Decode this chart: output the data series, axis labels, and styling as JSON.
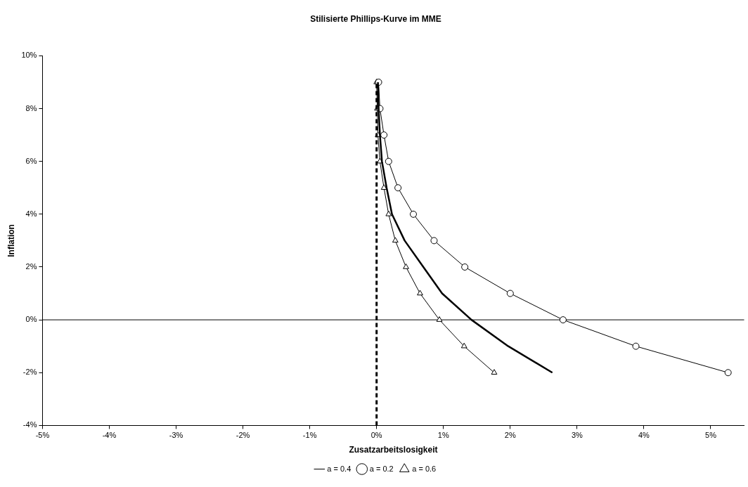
{
  "chart_data": {
    "type": "line",
    "title": "Stilisierte Phillips-Kurve im MME",
    "xlabel": "Zusatzarbeitslosigkeit",
    "ylabel": "Inflation",
    "xlim": [
      -5,
      5.5
    ],
    "xticks": [
      {
        "value": -5,
        "label": "-5%"
      },
      {
        "value": -4,
        "label": "-4%"
      },
      {
        "value": -3,
        "label": "-3%"
      },
      {
        "value": -2,
        "label": "-2%"
      },
      {
        "value": -1,
        "label": "-1%"
      },
      {
        "value": 0,
        "label": "0%"
      },
      {
        "value": 1,
        "label": "1%"
      },
      {
        "value": 2,
        "label": "2%"
      },
      {
        "value": 3,
        "label": "3%"
      },
      {
        "value": 4,
        "label": "4%"
      },
      {
        "value": 5,
        "label": "5%"
      }
    ],
    "ylim": [
      -4,
      10
    ],
    "yticks": [
      {
        "value": -4,
        "label": "-4%"
      },
      {
        "value": -2,
        "label": "-2%"
      },
      {
        "value": 0,
        "label": "0%"
      },
      {
        "value": 2,
        "label": "2%"
      },
      {
        "value": 4,
        "label": "4%"
      },
      {
        "value": 6,
        "label": "6%"
      },
      {
        "value": 8,
        "label": "8%"
      },
      {
        "value": 10,
        "label": "10%"
      }
    ],
    "grid": false,
    "legend": "bottom",
    "ref_lines": [
      {
        "axis": "y",
        "value": 0,
        "color": "#000000",
        "line_style": "solid"
      }
    ],
    "series": [
      {
        "color": "#000000",
        "line_style": "dashed",
        "x": [
          0,
          0
        ],
        "values": [
          -4,
          9
        ]
      },
      {
        "name": "a = 0.4",
        "color": "#000000",
        "marker": "none",
        "x": [
          0.02,
          0.03,
          0.05,
          0.08,
          0.15,
          0.23,
          0.42,
          0.7,
          0.98,
          1.42,
          1.97,
          2.63
        ],
        "values": [
          9,
          8,
          7,
          6,
          5,
          4,
          3,
          2,
          1,
          0,
          -1,
          -2
        ]
      },
      {
        "name": "a = 0.2",
        "color": "#000000",
        "marker": "circle",
        "x": [
          0.03,
          0.05,
          0.11,
          0.18,
          0.32,
          0.55,
          0.86,
          1.32,
          2.0,
          2.79,
          3.88,
          5.26
        ],
        "values": [
          9,
          8,
          7,
          6,
          5,
          4,
          3,
          2,
          1,
          0,
          -1,
          -2
        ]
      },
      {
        "name": "a = 0.6",
        "color": "#000000",
        "marker": "triangle",
        "x": [
          0.0,
          0.01,
          0.02,
          0.05,
          0.11,
          0.18,
          0.28,
          0.44,
          0.65,
          0.94,
          1.31,
          1.76
        ],
        "values": [
          9,
          8,
          7,
          6,
          5,
          4,
          3,
          2,
          1,
          0,
          -1,
          -2
        ]
      }
    ]
  }
}
